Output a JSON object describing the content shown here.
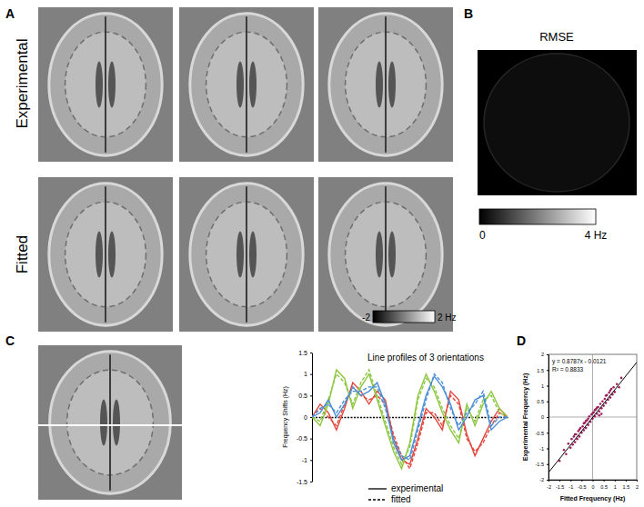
{
  "figure": {
    "panel_labels": [
      "A",
      "B",
      "C",
      "D"
    ],
    "row_labels": [
      "Experimental",
      "Fitted"
    ],
    "colorbar": {
      "range": [
        -2,
        2
      ],
      "ticks": [
        -2,
        {
          "value": 2,
          "label": "2 Hz"
        }
      ]
    },
    "rmse": {
      "title": "RMSE",
      "range": [
        0,
        4
      ],
      "ticks": [
        0,
        {
          "value": 4,
          "label": "4 Hz"
        }
      ]
    }
  },
  "chart_data": [
    {
      "type": "line",
      "title": "Line profiles of 3 orientations",
      "y_label": "Frequency Shifts (Hz)",
      "tick_labels": "y",
      "x": [
        0,
        1,
        2,
        3,
        4,
        5,
        6,
        7,
        8,
        9,
        10,
        11,
        12,
        13,
        14,
        15,
        16,
        17,
        18,
        19,
        20,
        21,
        22,
        23,
        24
      ],
      "xlim": [
        0,
        24
      ],
      "ylim": [
        -1.5,
        1.5
      ],
      "yticks": [
        1.5,
        1,
        0.5,
        0,
        -0.5,
        -1,
        -1.5
      ],
      "series": [
        {
          "name": "experimental",
          "color": "#e2453c",
          "line_style": "solid",
          "values": [
            0,
            0.3,
            0.1,
            -0.3,
            0.2,
            0.8,
            0.6,
            0.3,
            0.6,
            0.4,
            -0.5,
            -1.0,
            -1.1,
            -0.5,
            0.2,
            0.0,
            -0.3,
            0.6,
            0.4,
            -0.4,
            -0.9,
            -0.5,
            -0.1,
            0.2,
            0
          ]
        },
        {
          "name": "fitted",
          "color": "#e2453c",
          "line_style": "dashed",
          "values": [
            0,
            0.2,
            0.0,
            -0.2,
            0.3,
            0.7,
            0.5,
            0.4,
            0.5,
            0.3,
            -0.4,
            -0.9,
            -1.2,
            -0.6,
            0.1,
            0.1,
            -0.2,
            0.5,
            0.3,
            -0.5,
            -0.8,
            -0.6,
            -0.2,
            0.1,
            0
          ]
        },
        {
          "name": "experimental",
          "color": "#8dc63f",
          "line_style": "solid",
          "values": [
            0,
            -0.2,
            0.3,
            1.1,
            0.9,
            0.2,
            0.7,
            1.0,
            0.4,
            -0.2,
            -0.8,
            -1.2,
            -0.6,
            0.5,
            1.0,
            0.6,
            0.1,
            -0.3,
            -0.6,
            0.3,
            -0.2,
            0.3,
            0.6,
            0.2,
            0
          ]
        },
        {
          "name": "fitted",
          "color": "#8dc63f",
          "line_style": "dashed",
          "values": [
            0,
            -0.1,
            0.4,
            1.0,
            0.8,
            0.3,
            0.8,
            1.1,
            0.5,
            -0.1,
            -0.7,
            -1.1,
            -0.7,
            0.4,
            0.9,
            0.7,
            0.2,
            -0.2,
            -0.5,
            0.2,
            -0.1,
            0.4,
            0.5,
            0.1,
            0
          ]
        },
        {
          "name": "experimental",
          "color": "#4b8fd6",
          "line_style": "solid",
          "values": [
            0,
            0.1,
            0.4,
            0.0,
            0.3,
            0.7,
            0.5,
            0.6,
            0.8,
            0.3,
            -0.6,
            -1.0,
            -0.9,
            -0.2,
            0.5,
            0.95,
            0.7,
            0.3,
            -0.3,
            0.0,
            0.4,
            0.5,
            -0.3,
            -0.1,
            0
          ]
        },
        {
          "name": "fitted",
          "color": "#4b8fd6",
          "line_style": "dashed",
          "values": [
            0,
            0.2,
            0.3,
            0.1,
            0.4,
            0.6,
            0.6,
            0.7,
            0.7,
            0.2,
            -0.5,
            -0.9,
            -1.0,
            -0.3,
            0.4,
            1.0,
            0.8,
            0.2,
            -0.2,
            0.1,
            0.3,
            0.6,
            -0.2,
            0,
            0
          ]
        }
      ],
      "legend": "bottom"
    },
    {
      "type": "scatter",
      "x_label": "Fitted Frequency (Hz)",
      "y_label": "Experimental Frequency (Hz)",
      "color": "#9c1f5e",
      "marker": "circle",
      "xlim": [
        -2,
        2
      ],
      "ylim": [
        -2,
        2
      ],
      "xticks": [
        -2,
        -1.5,
        -1,
        -0.5,
        0,
        0.5,
        1,
        1.5,
        2
      ],
      "yticks": [
        -2,
        -1.5,
        -1,
        -0.5,
        0,
        0.5,
        1,
        1.5,
        2
      ],
      "annotations": [
        "y = 0.8787x - 0.0121",
        "R² = 0.8833"
      ],
      "trendline": {
        "slope": 0.8787,
        "intercept": -0.0121
      },
      "x": [
        -1.5,
        -1.3,
        -1.2,
        -1.1,
        -1.0,
        -0.95,
        -0.9,
        -0.85,
        -0.8,
        -0.75,
        -0.7,
        -0.65,
        -0.6,
        -0.55,
        -0.5,
        -0.45,
        -0.4,
        -0.35,
        -0.3,
        -0.25,
        -0.2,
        -0.15,
        -0.1,
        -0.05,
        0,
        0.05,
        0.1,
        0.15,
        0.2,
        0.25,
        0.3,
        0.35,
        0.4,
        0.45,
        0.5,
        0.55,
        0.6,
        0.65,
        0.7,
        0.75,
        0.8,
        0.85,
        0.9,
        0.95,
        1.0,
        1.1,
        1.2,
        1.3,
        -0.6,
        -0.4,
        -0.2,
        0,
        0.2,
        0.4,
        0.6,
        -0.8,
        0.8,
        -0.3,
        0.3,
        0.1
      ],
      "values": [
        -1.4,
        -1.05,
        -1.18,
        -0.85,
        -0.98,
        -0.7,
        -0.88,
        -0.62,
        -0.8,
        -0.55,
        -0.7,
        -0.45,
        -0.62,
        -0.35,
        -0.5,
        -0.3,
        -0.42,
        -0.18,
        -0.35,
        -0.1,
        -0.25,
        0.02,
        -0.15,
        0.08,
        -0.05,
        0.15,
        0.02,
        0.25,
        0.1,
        0.32,
        0.18,
        0.42,
        0.28,
        0.5,
        0.36,
        0.58,
        0.45,
        0.7,
        0.55,
        0.78,
        0.62,
        0.9,
        0.72,
        0.95,
        0.8,
        1.05,
        0.95,
        1.25,
        -0.4,
        -0.2,
        -0.05,
        0.12,
        0.3,
        0.1,
        0.68,
        -0.55,
        0.85,
        -0.12,
        0.05,
        0.22
      ]
    }
  ]
}
